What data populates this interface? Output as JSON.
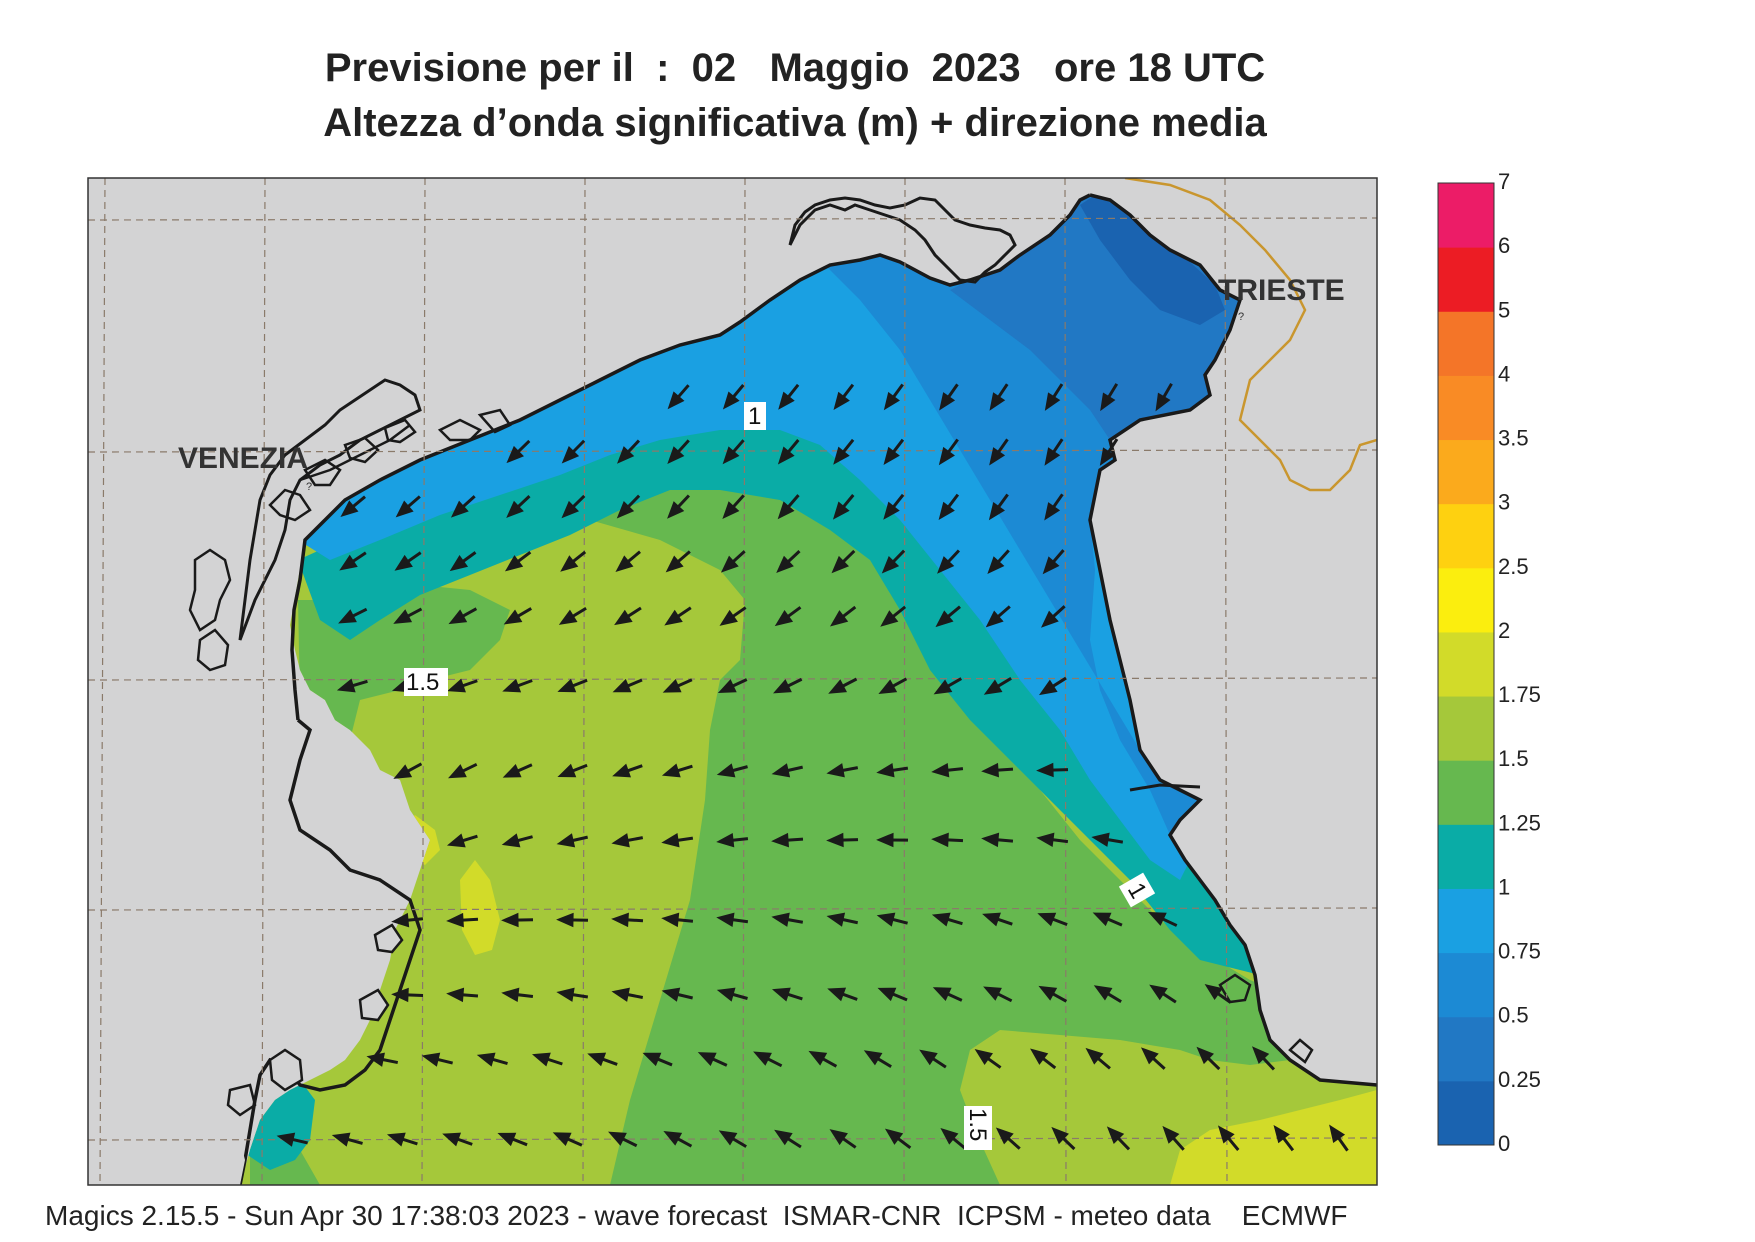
{
  "title": {
    "line1": "Previsione per il  :  02   Maggio  2023   ore 18 UTC",
    "line2": "Altezza d’onda significativa (m) + direzione media"
  },
  "footer": "Magics 2.15.5 - Sun Apr 30 17:38:03 2023 - wave forecast  ISMAR-CNR  ICPSM - meteo data    ECMWF",
  "map": {
    "cities": [
      {
        "name": "VENEZIA",
        "marker": "?"
      },
      {
        "name": "TRIESTE",
        "marker": "?"
      }
    ],
    "contour_labels": [
      "1",
      "1.5",
      "1",
      "1.5"
    ],
    "land_color": "#d3d3d4",
    "coast_color": "#1a1a1a",
    "border_color": "#c9962e"
  },
  "colorbar": {
    "ticks": [
      "0",
      "0.25",
      "0.5",
      "0.75",
      "1",
      "1.25",
      "1.5",
      "1.75",
      "2",
      "2.5",
      "3",
      "3.5",
      "4",
      "5",
      "6",
      "7"
    ],
    "colors": [
      "#1a63b0",
      "#2178c4",
      "#1c8ad4",
      "#1aa0e2",
      "#0aaca6",
      "#66b84f",
      "#a5c83a",
      "#d2db29",
      "#fbee0e",
      "#fed110",
      "#fbaa1c",
      "#f98b25",
      "#f47528",
      "#ec1c24",
      "#ec1c67"
    ]
  }
}
